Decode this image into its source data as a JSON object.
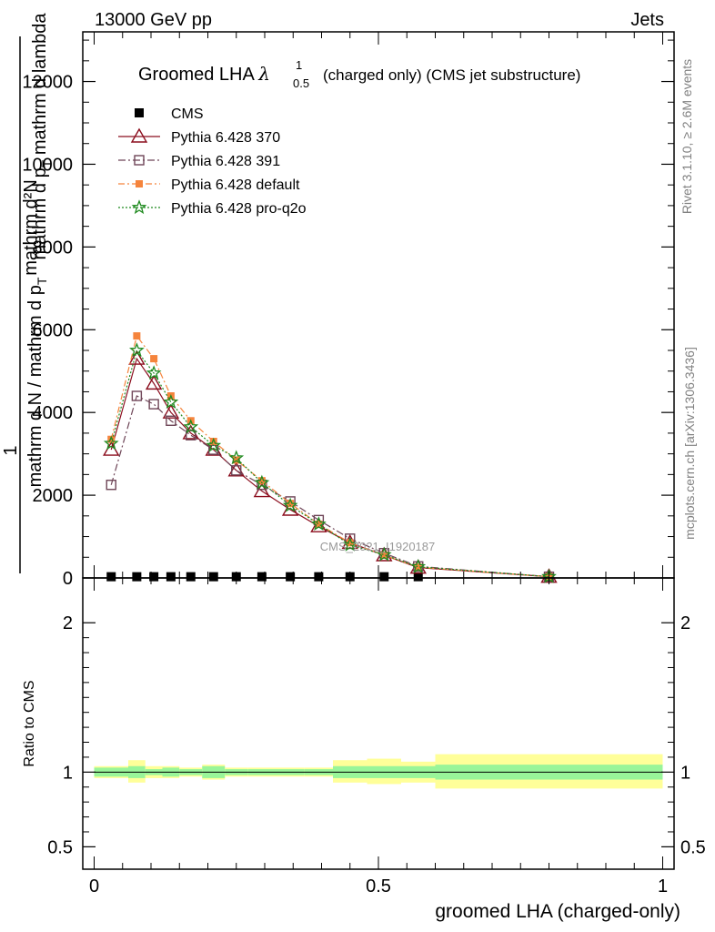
{
  "header": {
    "left": "13000 GeV pp",
    "right": "Jets"
  },
  "side_labels": {
    "rivet": "Rivet 3.1.10, ≥ 2.6M events",
    "mcplots": "mcplots.cern.ch [arXiv:1306.3436]"
  },
  "watermark": "CMS_2021_I1920187",
  "colors": {
    "cms": "#000000",
    "p370": "#8b0d1d",
    "p391": "#6e4557",
    "pdefault": "#f5843c",
    "pq2o": "#1f8a1f",
    "band_inner": "#99f599",
    "band_outer": "#ffff99"
  },
  "chart_data": [
    {
      "type": "line",
      "title": "Groomed LHA λ¹₀.₅ (charged only) (CMS jet substructure)",
      "title_main": "Groomed LHA ",
      "title_symbol": "λ",
      "title_sup": "1",
      "title_sub": "0.5",
      "title_rest": "(charged only) (CMS jet substructure)",
      "ylabel_line1": "mathrm d²N",
      "ylabel_line2": "mathrm d p",
      "ylabel_line2_sub": "T",
      "ylabel_line2_rest": " mathrm d lambda",
      "ylabel_line3": "1",
      "ylabel_line4": "mathrm d N / mathrm d p",
      "ylabel_line4_sub": "T",
      "ylim": [
        0,
        13200
      ],
      "yticks": [
        0,
        2000,
        4000,
        6000,
        8000,
        10000,
        12000
      ],
      "ytick_labels": [
        "0",
        "2000",
        "4000",
        "6000",
        "8000",
        "10000",
        "12000"
      ],
      "xlim": [
        -0.02,
        1.02
      ],
      "legend": {
        "position": "top-left"
      },
      "series": [
        {
          "key": "cms",
          "name": "CMS",
          "x": [
            0.03,
            0.075,
            0.105,
            0.135,
            0.17,
            0.21,
            0.25,
            0.295,
            0.345,
            0.395,
            0.45,
            0.51,
            0.57,
            0.8
          ],
          "y": [
            30,
            30,
            30,
            30,
            30,
            30,
            30,
            30,
            30,
            30,
            30,
            30,
            30,
            0
          ]
        },
        {
          "key": "p370",
          "name": "Pythia 6.428 370",
          "x": [
            0.03,
            0.075,
            0.105,
            0.135,
            0.17,
            0.21,
            0.25,
            0.295,
            0.345,
            0.395,
            0.45,
            0.51,
            0.57,
            0.8
          ],
          "y": [
            3100,
            5300,
            4700,
            4000,
            3500,
            3100,
            2600,
            2100,
            1650,
            1250,
            850,
            550,
            250,
            30
          ]
        },
        {
          "key": "p391",
          "name": "Pythia 6.428 391",
          "x": [
            0.03,
            0.075,
            0.105,
            0.135,
            0.17,
            0.21,
            0.25,
            0.295,
            0.345,
            0.395,
            0.45,
            0.51,
            0.57,
            0.8
          ],
          "y": [
            2250,
            4400,
            4200,
            3800,
            3450,
            3100,
            2600,
            2250,
            1850,
            1400,
            950,
            600,
            280,
            30
          ]
        },
        {
          "key": "pdefault",
          "name": "Pythia 6.428 default",
          "x": [
            0.03,
            0.075,
            0.105,
            0.135,
            0.17,
            0.21,
            0.25,
            0.295,
            0.345,
            0.395,
            0.45,
            0.51,
            0.57,
            0.8
          ],
          "y": [
            3350,
            5850,
            5300,
            4400,
            3800,
            3300,
            2850,
            2350,
            1800,
            1300,
            850,
            550,
            260,
            30
          ]
        },
        {
          "key": "pq2o",
          "name": "Pythia 6.428 pro-q2o",
          "x": [
            0.03,
            0.075,
            0.105,
            0.135,
            0.17,
            0.21,
            0.25,
            0.295,
            0.345,
            0.395,
            0.45,
            0.51,
            0.57,
            0.8
          ],
          "y": [
            3250,
            5500,
            4950,
            4250,
            3650,
            3200,
            2900,
            2300,
            1750,
            1300,
            800,
            560,
            270,
            30
          ]
        }
      ]
    },
    {
      "type": "area",
      "ylabel": "Ratio to CMS",
      "xlabel": "groomed LHA (charged-only)",
      "xlim": [
        -0.02,
        1.02
      ],
      "ylim": [
        0.35,
        2.3
      ],
      "ticks_ratio": [
        0.5,
        1,
        2
      ],
      "tick_labels_ratio": [
        "0.5",
        "1",
        "2"
      ],
      "xticks": [
        0,
        0.5,
        1
      ],
      "xtick_labels": [
        "0",
        "0.5",
        "1"
      ],
      "bins": [
        0,
        0.06,
        0.09,
        0.12,
        0.15,
        0.19,
        0.23,
        0.27,
        0.32,
        0.37,
        0.42,
        0.48,
        0.54,
        0.6,
        1.0
      ],
      "band_inner": [
        [
          0.97,
          1.03
        ],
        [
          0.96,
          1.04
        ],
        [
          0.98,
          1.02
        ],
        [
          0.97,
          1.03
        ],
        [
          0.98,
          1.02
        ],
        [
          0.96,
          1.04
        ],
        [
          0.98,
          1.02
        ],
        [
          0.98,
          1.02
        ],
        [
          0.98,
          1.02
        ],
        [
          0.98,
          1.02
        ],
        [
          0.96,
          1.04
        ],
        [
          0.96,
          1.04
        ],
        [
          0.96,
          1.04
        ],
        [
          0.95,
          1.05
        ]
      ],
      "band_outer": [
        [
          0.96,
          1.04
        ],
        [
          0.93,
          1.08
        ],
        [
          0.96,
          1.04
        ],
        [
          0.96,
          1.04
        ],
        [
          0.97,
          1.03
        ],
        [
          0.95,
          1.05
        ],
        [
          0.97,
          1.03
        ],
        [
          0.97,
          1.03
        ],
        [
          0.97,
          1.03
        ],
        [
          0.97,
          1.03
        ],
        [
          0.93,
          1.08
        ],
        [
          0.92,
          1.09
        ],
        [
          0.93,
          1.07
        ],
        [
          0.89,
          1.12
        ]
      ],
      "reference": 1
    }
  ]
}
